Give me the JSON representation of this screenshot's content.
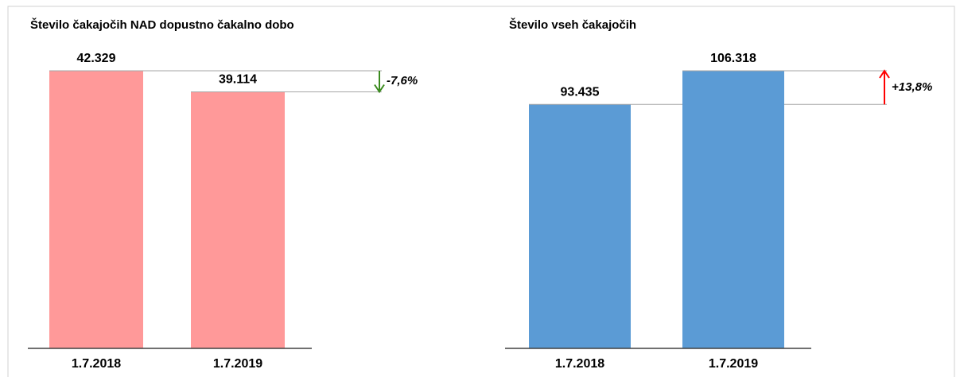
{
  "chart_data": [
    {
      "type": "bar",
      "title": "Število čakajočih NAD dopustno čakalno dobo",
      "categories": [
        "1.7.2018",
        "1.7.2019"
      ],
      "values": [
        42329,
        39114
      ],
      "value_labels": [
        "42.329",
        "39.114"
      ],
      "color": "#ff9999",
      "annotation": {
        "text": "-7,6%",
        "color": "#3a8a1e"
      }
    },
    {
      "type": "bar",
      "title": "Število vseh čakajočih",
      "categories": [
        "1.7.2018",
        "1.7.2019"
      ],
      "values": [
        93435,
        106318
      ],
      "value_labels": [
        "93.435",
        "106.318"
      ],
      "color": "#5b9bd5",
      "annotation": {
        "text": "+13,8%",
        "color": "#ff0000"
      }
    }
  ]
}
